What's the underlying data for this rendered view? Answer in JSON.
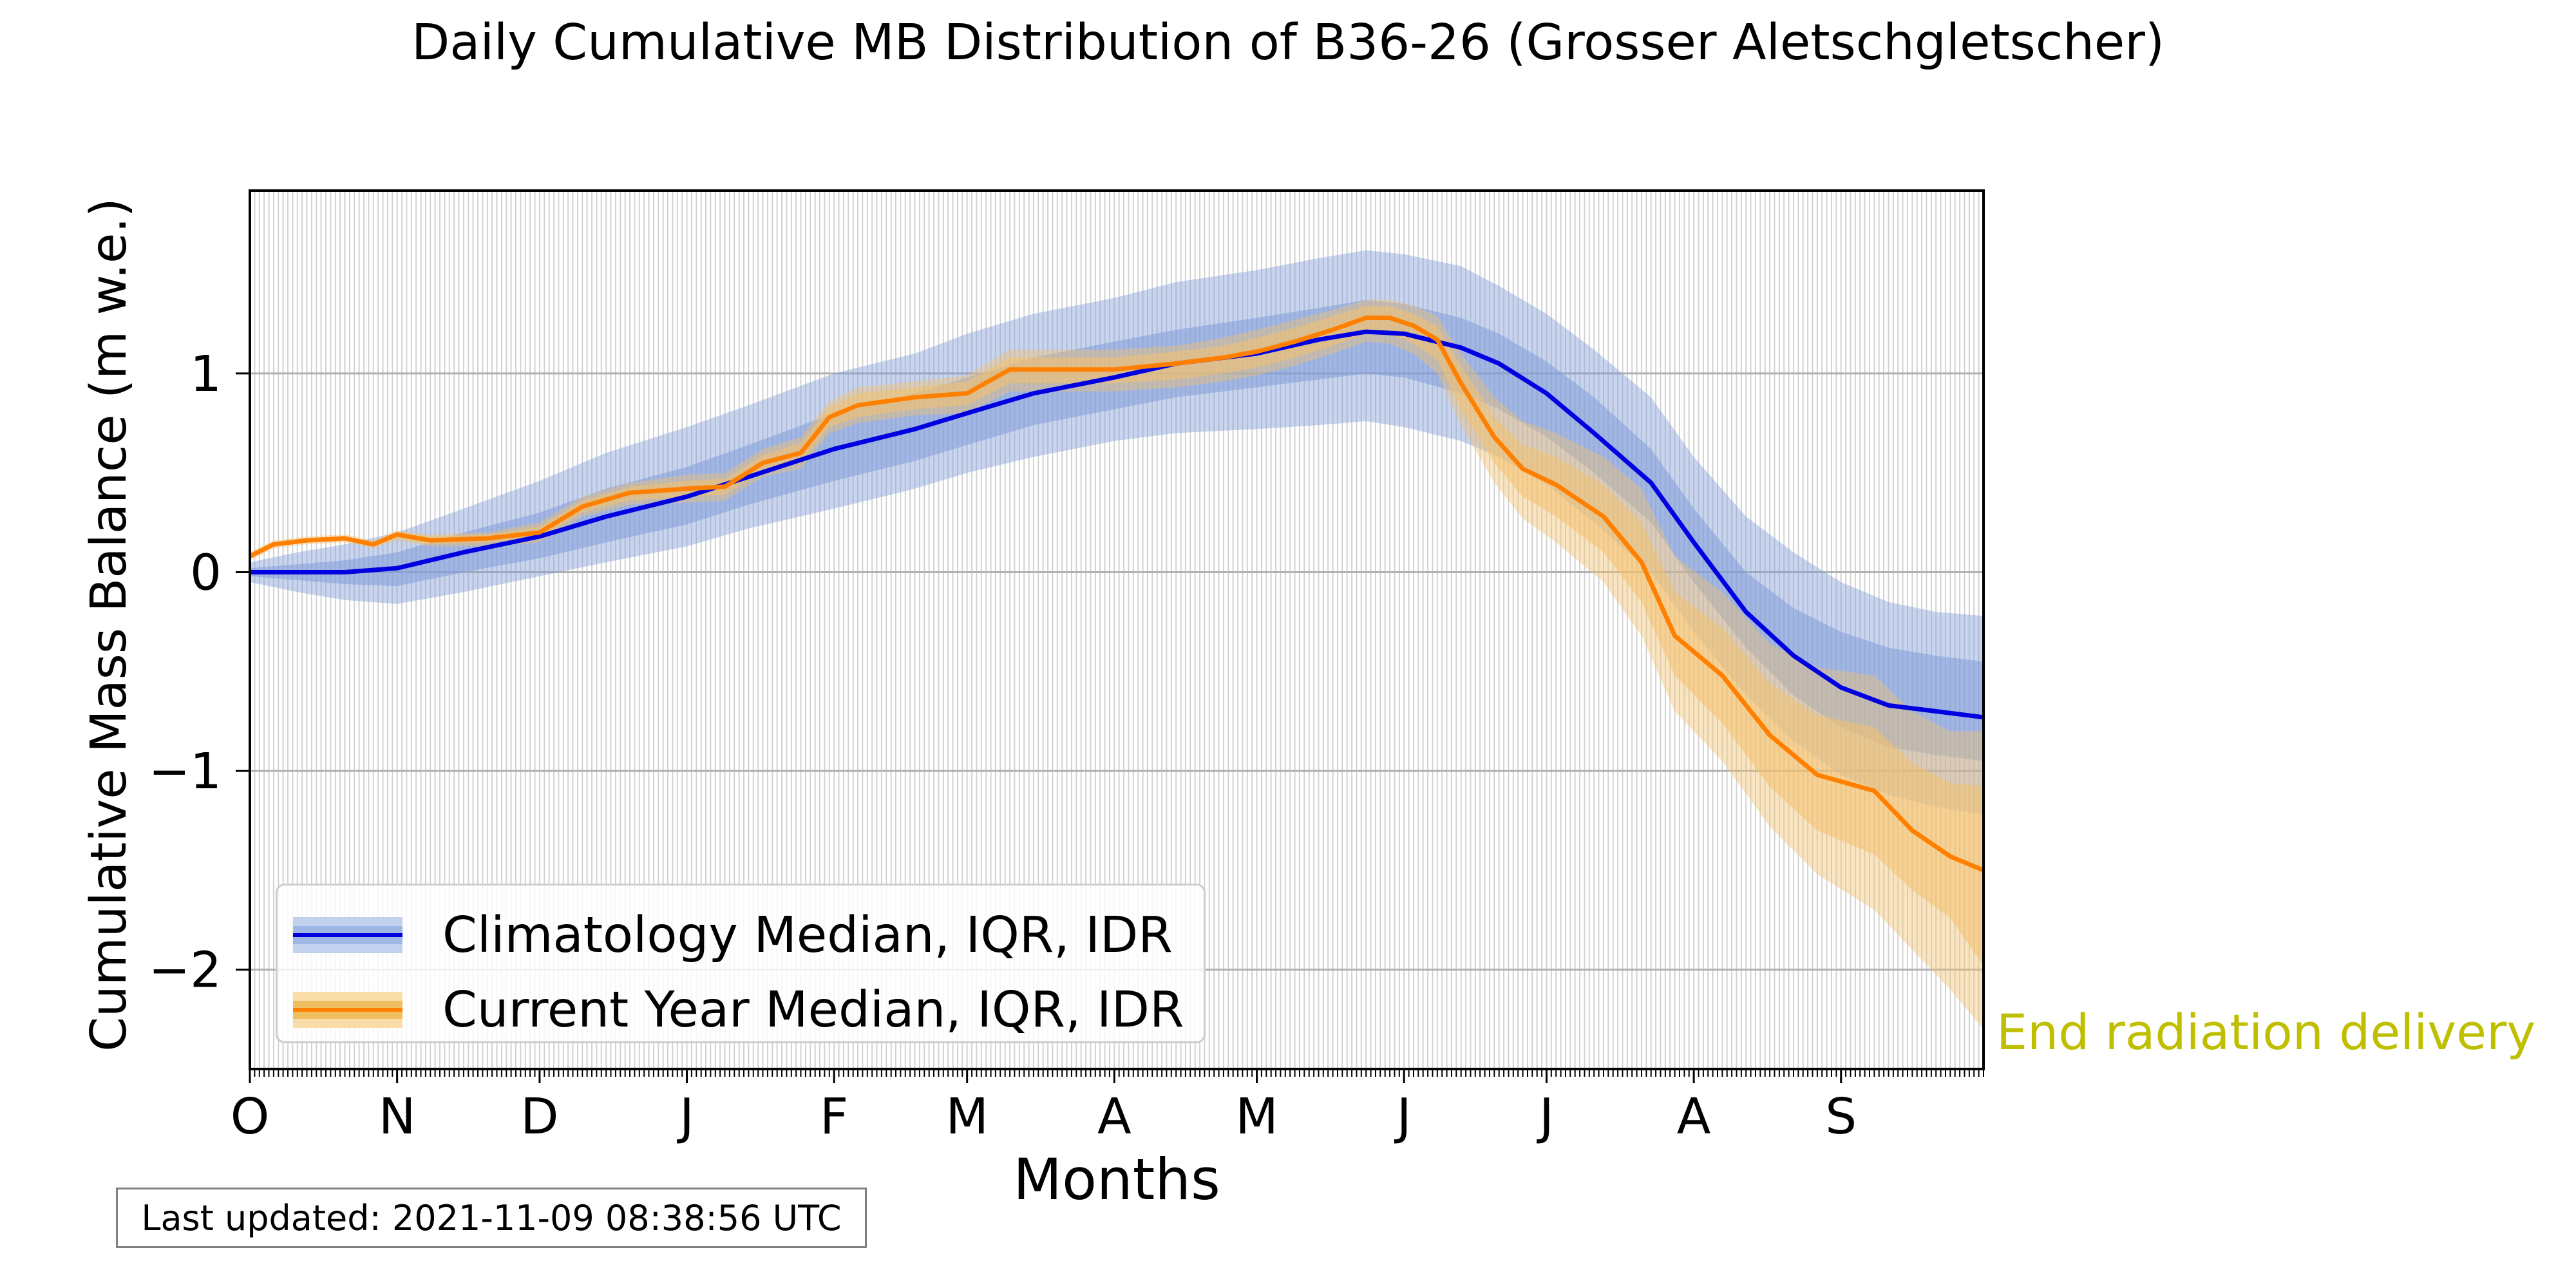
{
  "chart_data": {
    "type": "line",
    "title": "Daily Cumulative MB Distribution of B36-26 (Grosser Aletschgletscher)",
    "xlabel": "Months",
    "ylabel": "Cumulative Mass Balance (m w.e.)",
    "x_tick_labels": [
      "O",
      "N",
      "D",
      "J",
      "F",
      "M",
      "A",
      "M",
      "J",
      "J",
      "A",
      "S"
    ],
    "x_tick_days": [
      0,
      31,
      61,
      92,
      123,
      151,
      182,
      212,
      243,
      273,
      304,
      335
    ],
    "xlim": [
      0,
      365
    ],
    "ylim": [
      -2.5,
      1.92
    ],
    "y_ticks": [
      -2,
      -1,
      0,
      1
    ],
    "y_tick_labels": [
      "−2",
      "−1",
      "0",
      "1"
    ],
    "grid": true,
    "legend_position": "lower-left",
    "series": [
      {
        "name": "Climatology Median, IQR, IDR",
        "color": "#0000e0",
        "band_color": "#7f9cd8",
        "x": [
          0,
          10,
          20,
          31,
          45,
          61,
          75,
          92,
          105,
          123,
          140,
          151,
          165,
          182,
          195,
          212,
          225,
          235,
          243,
          255,
          263,
          273,
          283,
          295,
          304,
          315,
          325,
          335,
          345,
          355,
          365
        ],
        "median": [
          0.0,
          0.0,
          0.0,
          0.02,
          0.1,
          0.18,
          0.28,
          0.38,
          0.48,
          0.62,
          0.72,
          0.8,
          0.9,
          0.98,
          1.05,
          1.1,
          1.17,
          1.21,
          1.2,
          1.13,
          1.05,
          0.9,
          0.7,
          0.45,
          0.15,
          -0.2,
          -0.42,
          -0.58,
          -0.67,
          -0.7,
          -0.73
        ],
        "q25": [
          -0.02,
          -0.04,
          -0.06,
          -0.07,
          0.0,
          0.07,
          0.15,
          0.24,
          0.34,
          0.46,
          0.56,
          0.64,
          0.74,
          0.82,
          0.88,
          0.93,
          0.97,
          1.0,
          0.98,
          0.9,
          0.82,
          0.68,
          0.5,
          0.25,
          -0.05,
          -0.38,
          -0.62,
          -0.78,
          -0.88,
          -0.92,
          -0.95
        ],
        "q75": [
          0.02,
          0.04,
          0.06,
          0.1,
          0.2,
          0.3,
          0.42,
          0.53,
          0.64,
          0.8,
          0.9,
          0.98,
          1.08,
          1.16,
          1.22,
          1.28,
          1.33,
          1.37,
          1.35,
          1.28,
          1.2,
          1.06,
          0.88,
          0.62,
          0.32,
          0.0,
          -0.18,
          -0.3,
          -0.38,
          -0.42,
          -0.45
        ],
        "p10": [
          -0.05,
          -0.1,
          -0.14,
          -0.16,
          -0.1,
          -0.02,
          0.05,
          0.13,
          0.22,
          0.32,
          0.42,
          0.5,
          0.58,
          0.66,
          0.7,
          0.72,
          0.74,
          0.76,
          0.73,
          0.66,
          0.58,
          0.44,
          0.25,
          0.0,
          -0.3,
          -0.62,
          -0.85,
          -1.02,
          -1.12,
          -1.18,
          -1.22
        ],
        "p90": [
          0.05,
          0.1,
          0.14,
          0.2,
          0.32,
          0.46,
          0.6,
          0.73,
          0.84,
          1.0,
          1.1,
          1.2,
          1.3,
          1.38,
          1.46,
          1.52,
          1.58,
          1.62,
          1.6,
          1.54,
          1.44,
          1.3,
          1.12,
          0.88,
          0.58,
          0.28,
          0.1,
          -0.05,
          -0.15,
          -0.2,
          -0.22
        ]
      },
      {
        "name": "Current Year Median, IQR, IDR",
        "color": "#ff8000",
        "band_color": "#f3c16e",
        "x": [
          0,
          5,
          12,
          20,
          26,
          31,
          38,
          50,
          61,
          70,
          80,
          92,
          100,
          108,
          116,
          122,
          128,
          140,
          151,
          160,
          170,
          182,
          195,
          205,
          212,
          220,
          228,
          235,
          240,
          245,
          250,
          255,
          262,
          268,
          275,
          285,
          293,
          300,
          310,
          320,
          330,
          342,
          350,
          358,
          365
        ],
        "median": [
          0.08,
          0.14,
          0.16,
          0.17,
          0.14,
          0.19,
          0.16,
          0.17,
          0.2,
          0.33,
          0.4,
          0.42,
          0.43,
          0.55,
          0.6,
          0.78,
          0.84,
          0.88,
          0.9,
          1.02,
          1.02,
          1.02,
          1.05,
          1.08,
          1.11,
          1.16,
          1.22,
          1.28,
          1.28,
          1.24,
          1.17,
          0.95,
          0.68,
          0.52,
          0.44,
          0.28,
          0.05,
          -0.32,
          -0.52,
          -0.82,
          -1.02,
          -1.1,
          -1.3,
          -1.43,
          -1.5
        ],
        "q25": [
          0.07,
          0.13,
          0.15,
          0.16,
          0.13,
          0.17,
          0.14,
          0.15,
          0.17,
          0.3,
          0.36,
          0.38,
          0.39,
          0.51,
          0.55,
          0.73,
          0.78,
          0.82,
          0.84,
          0.95,
          0.95,
          0.95,
          0.97,
          1.0,
          1.03,
          1.08,
          1.14,
          1.2,
          1.2,
          1.15,
          1.07,
          0.82,
          0.55,
          0.38,
          0.28,
          0.1,
          -0.15,
          -0.52,
          -0.76,
          -1.08,
          -1.3,
          -1.42,
          -1.6,
          -1.74,
          -1.98
        ],
        "q75": [
          0.09,
          0.15,
          0.17,
          0.18,
          0.15,
          0.2,
          0.18,
          0.19,
          0.23,
          0.36,
          0.43,
          0.46,
          0.47,
          0.59,
          0.65,
          0.83,
          0.9,
          0.93,
          0.96,
          1.08,
          1.08,
          1.08,
          1.11,
          1.14,
          1.18,
          1.23,
          1.29,
          1.34,
          1.34,
          1.3,
          1.24,
          1.04,
          0.78,
          0.64,
          0.58,
          0.44,
          0.25,
          -0.1,
          -0.28,
          -0.56,
          -0.72,
          -0.78,
          -0.96,
          -1.06,
          -1.08
        ],
        "p10": [
          0.06,
          0.12,
          0.14,
          0.15,
          0.12,
          0.16,
          0.13,
          0.13,
          0.15,
          0.28,
          0.34,
          0.35,
          0.36,
          0.48,
          0.52,
          0.7,
          0.75,
          0.79,
          0.8,
          0.91,
          0.91,
          0.91,
          0.93,
          0.96,
          0.99,
          1.04,
          1.1,
          1.16,
          1.15,
          1.1,
          1.0,
          0.74,
          0.45,
          0.27,
          0.15,
          -0.05,
          -0.32,
          -0.7,
          -0.95,
          -1.28,
          -1.52,
          -1.7,
          -1.9,
          -2.1,
          -2.3
        ],
        "p90": [
          0.1,
          0.16,
          0.18,
          0.19,
          0.16,
          0.21,
          0.19,
          0.2,
          0.25,
          0.38,
          0.45,
          0.49,
          0.5,
          0.62,
          0.68,
          0.86,
          0.93,
          0.96,
          0.99,
          1.12,
          1.12,
          1.12,
          1.14,
          1.18,
          1.22,
          1.27,
          1.32,
          1.37,
          1.37,
          1.34,
          1.29,
          1.1,
          0.88,
          0.76,
          0.7,
          0.58,
          0.42,
          0.08,
          -0.1,
          -0.36,
          -0.48,
          -0.52,
          -0.7,
          -0.8,
          -0.8
        ]
      }
    ]
  },
  "annotation": {
    "text": "End radiation delivery",
    "color": "#bfbf00"
  },
  "footer": {
    "last_updated": "Last updated: 2021-11-09 08:38:56 UTC"
  }
}
